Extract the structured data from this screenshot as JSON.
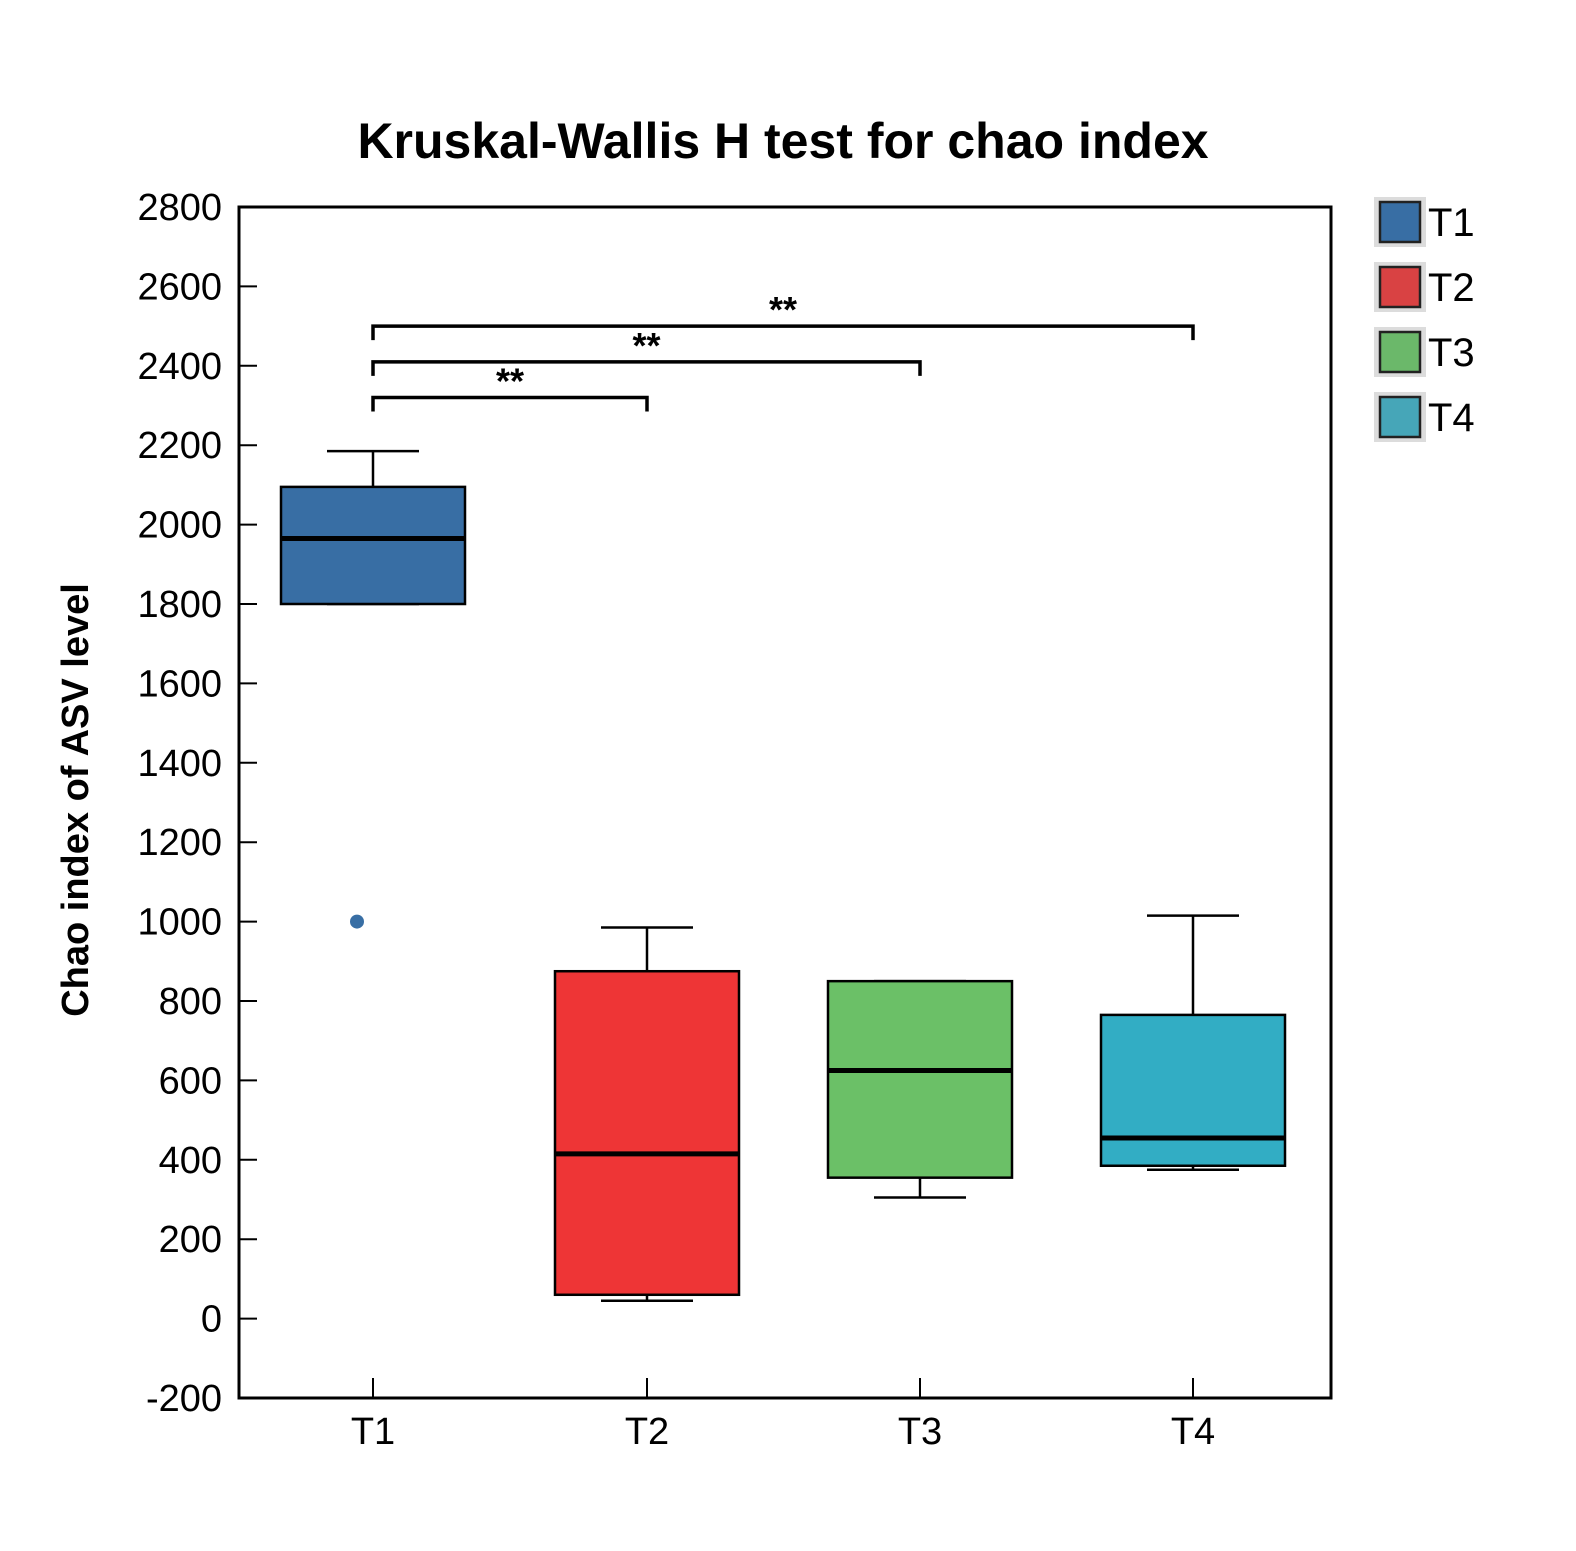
{
  "chart_data": {
    "type": "box",
    "title": "Kruskal-Wallis H test for chao index",
    "xlabel": "",
    "ylabel": "Chao index of ASV level",
    "ylim": [
      -200,
      2800
    ],
    "yticks": [
      -200,
      0,
      200,
      400,
      600,
      800,
      1000,
      1200,
      1400,
      1600,
      1800,
      2000,
      2200,
      2400,
      2600,
      2800
    ],
    "grid": false,
    "legend_position": "right",
    "categories": [
      "T1",
      "T2",
      "T3",
      "T4"
    ],
    "series": [
      {
        "name": "T1",
        "color": "#386ea4",
        "whisker_low": 1800,
        "q1": 1800,
        "median": 1965,
        "q3": 2095,
        "whisker_high": 2185,
        "outliers": [
          1000
        ]
      },
      {
        "name": "T2",
        "color": "#ee3536",
        "whisker_low": 45,
        "q1": 60,
        "median": 415,
        "q3": 875,
        "whisker_high": 985,
        "outliers": []
      },
      {
        "name": "T3",
        "color": "#6bc067",
        "whisker_low": 305,
        "q1": 355,
        "median": 625,
        "q3": 850,
        "whisker_high": 850,
        "outliers": []
      },
      {
        "name": "T4",
        "color": "#32adc4",
        "whisker_low": 375,
        "q1": 385,
        "median": 455,
        "q3": 765,
        "whisker_high": 1015,
        "outliers": []
      }
    ],
    "significance": [
      {
        "from": "T1",
        "to": "T2",
        "y": 2320,
        "label": "**"
      },
      {
        "from": "T1",
        "to": "T3",
        "y": 2410,
        "label": "**"
      },
      {
        "from": "T1",
        "to": "T4",
        "y": 2500,
        "label": "**"
      }
    ],
    "legend": [
      {
        "label": "T1",
        "color": "#386ea4"
      },
      {
        "label": "T2",
        "color": "#d94243"
      },
      {
        "label": "T3",
        "color": "#6bb86a"
      },
      {
        "label": "T4",
        "color": "#46a6b8"
      }
    ]
  }
}
